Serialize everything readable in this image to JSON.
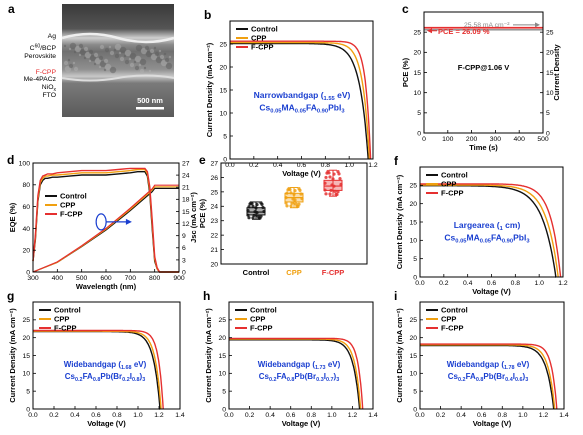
{
  "colors": {
    "control": "#111111",
    "cpp": "#f0a010",
    "fcpp": "#e53030",
    "blue": "#1a3fd0",
    "gray": "#888888"
  },
  "panel_a": {
    "letter": "a",
    "layers": [
      "Ag",
      "C60/BCP",
      "Perovskite",
      "F-CPP",
      "Me-4PACz",
      "NiOx",
      "FTO"
    ],
    "scale_bar": "500 nm"
  },
  "chart_data": [
    {
      "id": "b",
      "letter": "b",
      "type": "line",
      "xlabel": "Voltage (V)",
      "ylabel": "Current Density (mA cm⁻²)",
      "xlim": [
        0,
        1.2
      ],
      "ylim": [
        0,
        30
      ],
      "xticks": [
        "0.0",
        "0.2",
        "0.4",
        "0.6",
        "0.8",
        "1.0",
        "1.2"
      ],
      "yticks": [
        "0",
        "5",
        "10",
        "15",
        "20",
        "25"
      ],
      "legend": [
        "Control",
        "CPP",
        "F-CPP"
      ],
      "legend_position": "top-left",
      "annotation_lines": [
        "Narrow-bandgap (1.55 eV)",
        "Cs0.05MA0.05FA0.90PbI3"
      ],
      "series": [
        {
          "name": "Control",
          "jsc": 25.1,
          "voc": 1.16,
          "knee": 0.95,
          "curv": 14
        },
        {
          "name": "CPP",
          "jsc": 25.3,
          "voc": 1.17,
          "knee": 0.98,
          "curv": 18
        },
        {
          "name": "F-CPP",
          "jsc": 25.6,
          "voc": 1.18,
          "knee": 1.01,
          "curv": 24
        }
      ]
    },
    {
      "id": "c",
      "letter": "c",
      "type": "line",
      "xlabel": "Time (s)",
      "ylabel": "PCE (%)",
      "ylabel_right": "Current Density",
      "xlim": [
        0,
        500
      ],
      "ylim": [
        0,
        30
      ],
      "ylim_right": [
        0,
        30
      ],
      "xticks": [
        "0",
        "100",
        "200",
        "300",
        "400",
        "500"
      ],
      "yticks": [
        "0",
        "5",
        "10",
        "15",
        "20",
        "25"
      ],
      "yticks_right": [
        "0",
        "5",
        "10",
        "15",
        "20",
        "25"
      ],
      "pce_value": 26.09,
      "jsc_value": 25.58,
      "pce_label": "PCE = 26.09 %",
      "jsc_label": "25.58 mA cm⁻²",
      "device_label": "F-CPP@1.06 V"
    },
    {
      "id": "d",
      "letter": "d",
      "type": "line",
      "xlabel": "Wavelength (nm)",
      "ylabel": "EQE (%)",
      "ylabel_right": "Jsc (mA cm⁻²)",
      "xlim": [
        300,
        900
      ],
      "ylim": [
        0,
        100
      ],
      "ylim_right": [
        0,
        27
      ],
      "xticks": [
        "300",
        "400",
        "500",
        "600",
        "700",
        "800",
        "900"
      ],
      "yticks": [
        "0",
        "20",
        "40",
        "60",
        "80",
        "100"
      ],
      "yticks_right": [
        "0",
        "3",
        "6",
        "9",
        "12",
        "15",
        "18",
        "21",
        "24",
        "27"
      ],
      "legend": [
        "Control",
        "CPP",
        "F-CPP"
      ],
      "legend_position": "left",
      "eqe": {
        "x": [
          300,
          310,
          320,
          330,
          340,
          350,
          360,
          380,
          400,
          450,
          500,
          550,
          600,
          650,
          700,
          730,
          760,
          770,
          780,
          790,
          800,
          810,
          820,
          900
        ],
        "Control": [
          10,
          30,
          65,
          80,
          84,
          86,
          86,
          87,
          87,
          88,
          89,
          89,
          89,
          90,
          91,
          92,
          92,
          88,
          72,
          40,
          10,
          3,
          0,
          0
        ],
        "CPP": [
          10,
          32,
          67,
          82,
          86,
          88,
          88,
          89,
          89,
          90,
          91,
          91,
          91,
          92,
          93,
          94,
          94,
          90,
          75,
          44,
          12,
          3,
          0,
          0
        ],
        "F-CPP": [
          10,
          34,
          70,
          84,
          88,
          89,
          90,
          90,
          91,
          92,
          93,
          93,
          93,
          94,
          95,
          95,
          95,
          92,
          78,
          48,
          14,
          4,
          0,
          0
        ]
      },
      "jsc_integrated": {
        "x": [
          300,
          400,
          500,
          600,
          700,
          790,
          800,
          900
        ],
        "Control": [
          0,
          2.4,
          6.3,
          10.4,
          15.2,
          19.9,
          20.7,
          20.7
        ],
        "CPP": [
          0,
          2.4,
          6.4,
          10.6,
          15.5,
          20.3,
          21.1,
          21.1
        ],
        "F-CPP": [
          0,
          2.5,
          6.5,
          10.8,
          15.8,
          20.6,
          21.5,
          21.5
        ]
      }
    },
    {
      "id": "e",
      "letter": "e",
      "type": "scatter",
      "ylabel": "PCE (%)",
      "ylim": [
        20,
        27
      ],
      "yticks": [
        "20",
        "21",
        "22",
        "23",
        "24",
        "25",
        "26",
        "27"
      ],
      "categories": [
        "Control",
        "CPP",
        "F-CPP"
      ],
      "boxes": [
        {
          "name": "Control",
          "min": 23.1,
          "q1": 23.4,
          "median": 23.6,
          "q3": 23.9,
          "max": 24.3,
          "color_key": "control"
        },
        {
          "name": "CPP",
          "min": 23.9,
          "q1": 24.3,
          "median": 24.6,
          "q3": 24.9,
          "max": 25.3,
          "color_key": "cpp"
        },
        {
          "name": "F-CPP",
          "min": 24.7,
          "q1": 25.1,
          "median": 25.4,
          "q3": 25.8,
          "max": 26.5,
          "color_key": "fcpp"
        }
      ]
    },
    {
      "id": "f",
      "letter": "f",
      "type": "line",
      "xlabel": "Voltage (V)",
      "ylabel": "Current Density (mA cm⁻²)",
      "xlim": [
        0,
        1.2
      ],
      "ylim": [
        0,
        30
      ],
      "xticks": [
        "0.0",
        "0.2",
        "0.4",
        "0.6",
        "0.8",
        "1.0",
        "1.2"
      ],
      "yticks": [
        "0",
        "5",
        "10",
        "15",
        "20",
        "25"
      ],
      "legend": [
        "Control",
        "CPP",
        "F-CPP"
      ],
      "legend_position": "top-left",
      "annotation_lines": [
        "Large-area (1 cm²)",
        "Cs0.05MA0.05FA0.90PbI3"
      ],
      "series": [
        {
          "name": "Control",
          "jsc": 24.9,
          "voc": 1.14,
          "knee": 0.84,
          "curv": 9
        },
        {
          "name": "CPP",
          "jsc": 25.1,
          "voc": 1.16,
          "knee": 0.88,
          "curv": 10
        },
        {
          "name": "F-CPP",
          "jsc": 25.4,
          "voc": 1.18,
          "knee": 0.92,
          "curv": 12
        }
      ]
    },
    {
      "id": "g",
      "letter": "g",
      "type": "line",
      "xlabel": "Voltage (V)",
      "ylabel": "Current Density (mA cm⁻²)",
      "xlim": [
        0,
        1.4
      ],
      "ylim": [
        0,
        30
      ],
      "xticks": [
        "0.0",
        "0.2",
        "0.4",
        "0.6",
        "0.8",
        "1.0",
        "1.2",
        "1.4"
      ],
      "yticks": [
        "0",
        "5",
        "10",
        "15",
        "20",
        "25"
      ],
      "legend": [
        "Control",
        "CPP",
        "F-CPP"
      ],
      "legend_position": "top-left",
      "annotation_lines": [
        "Wide-bandgap (1.68 eV)",
        "Cs0.2FA0.8Pb(Br0.2I0.8)3"
      ],
      "series": [
        {
          "name": "Control",
          "jsc": 21.7,
          "voc": 1.21,
          "knee": 1.04,
          "curv": 16
        },
        {
          "name": "CPP",
          "jsc": 21.8,
          "voc": 1.22,
          "knee": 1.06,
          "curv": 18
        },
        {
          "name": "F-CPP",
          "jsc": 22.0,
          "voc": 1.24,
          "knee": 1.09,
          "curv": 22
        }
      ]
    },
    {
      "id": "h",
      "letter": "h",
      "type": "line",
      "xlabel": "Voltage (V)",
      "ylabel": "Current Density (mA cm⁻²)",
      "xlim": [
        0,
        1.4
      ],
      "ylim": [
        0,
        30
      ],
      "xticks": [
        "0.0",
        "0.2",
        "0.4",
        "0.6",
        "0.8",
        "1.0",
        "1.2",
        "1.4"
      ],
      "yticks": [
        "0",
        "5",
        "10",
        "15",
        "20",
        "25"
      ],
      "legend": [
        "Control",
        "CPP",
        "F-CPP"
      ],
      "legend_position": "top-left",
      "annotation_lines": [
        "Wide-bandgap (1.73 eV)",
        "Cs0.2FA0.8Pb(Br0.3I0.7)3"
      ],
      "series": [
        {
          "name": "Control",
          "jsc": 19.4,
          "voc": 1.27,
          "knee": 1.1,
          "curv": 16
        },
        {
          "name": "CPP",
          "jsc": 19.6,
          "voc": 1.28,
          "knee": 1.12,
          "curv": 18
        },
        {
          "name": "F-CPP",
          "jsc": 19.8,
          "voc": 1.3,
          "knee": 1.15,
          "curv": 22
        }
      ]
    },
    {
      "id": "i",
      "letter": "i",
      "type": "line",
      "xlabel": "Voltage (V)",
      "ylabel": "Current Density (mA cm⁻²)",
      "xlim": [
        0,
        1.4
      ],
      "ylim": [
        0,
        30
      ],
      "xticks": [
        "0.0",
        "0.2",
        "0.4",
        "0.6",
        "0.8",
        "1.0",
        "1.2",
        "1.4"
      ],
      "yticks": [
        "0",
        "5",
        "10",
        "15",
        "20",
        "25"
      ],
      "legend": [
        "Control",
        "CPP",
        "F-CPP"
      ],
      "legend_position": "top-left",
      "annotation_lines": [
        "Wide-bandgap (1.78 eV)",
        "Cs0.2FA0.8Pb(Br0.4I0.6)3"
      ],
      "series": [
        {
          "name": "Control",
          "jsc": 17.8,
          "voc": 1.3,
          "knee": 1.1,
          "curv": 14
        },
        {
          "name": "CPP",
          "jsc": 18.0,
          "voc": 1.31,
          "knee": 1.13,
          "curv": 16
        },
        {
          "name": "F-CPP",
          "jsc": 18.2,
          "voc": 1.33,
          "knee": 1.16,
          "curv": 20
        }
      ]
    }
  ]
}
